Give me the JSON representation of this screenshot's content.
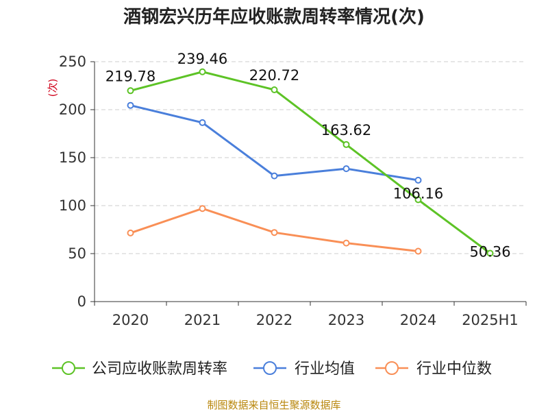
{
  "colors": {
    "background": "#ffffff",
    "axis": "#333333",
    "grid": "#cccccc"
  },
  "chart_data": {
    "type": "line",
    "title": "酒钢宏兴历年应收账款周转率情况(次)",
    "ylabel": "(次)",
    "xlabel": "",
    "categories": [
      "2020",
      "2021",
      "2022",
      "2023",
      "2024",
      "2025H1"
    ],
    "ylim": [
      0,
      250
    ],
    "yticks": [
      0,
      50,
      100,
      150,
      200,
      250
    ],
    "grid": true,
    "legend_position": "bottom",
    "series": [
      {
        "name": "公司应收账款周转率",
        "color": "#5dc326",
        "values": [
          219.78,
          239.46,
          220.72,
          163.62,
          106.16,
          50.36
        ],
        "labels": [
          "219.78",
          "239.46",
          "220.72",
          "163.62",
          "106.16",
          "50.36"
        ]
      },
      {
        "name": "行业均值",
        "color": "#4a7fdb",
        "values": [
          204.5,
          186.5,
          131.0,
          138.5,
          126.5,
          null
        ],
        "labels": []
      },
      {
        "name": "行业中位数",
        "color": "#f98f56",
        "values": [
          71.5,
          97.0,
          72.0,
          61.0,
          52.5,
          null
        ],
        "labels": []
      }
    ]
  },
  "source": "制图数据来自恒生聚源数据库"
}
